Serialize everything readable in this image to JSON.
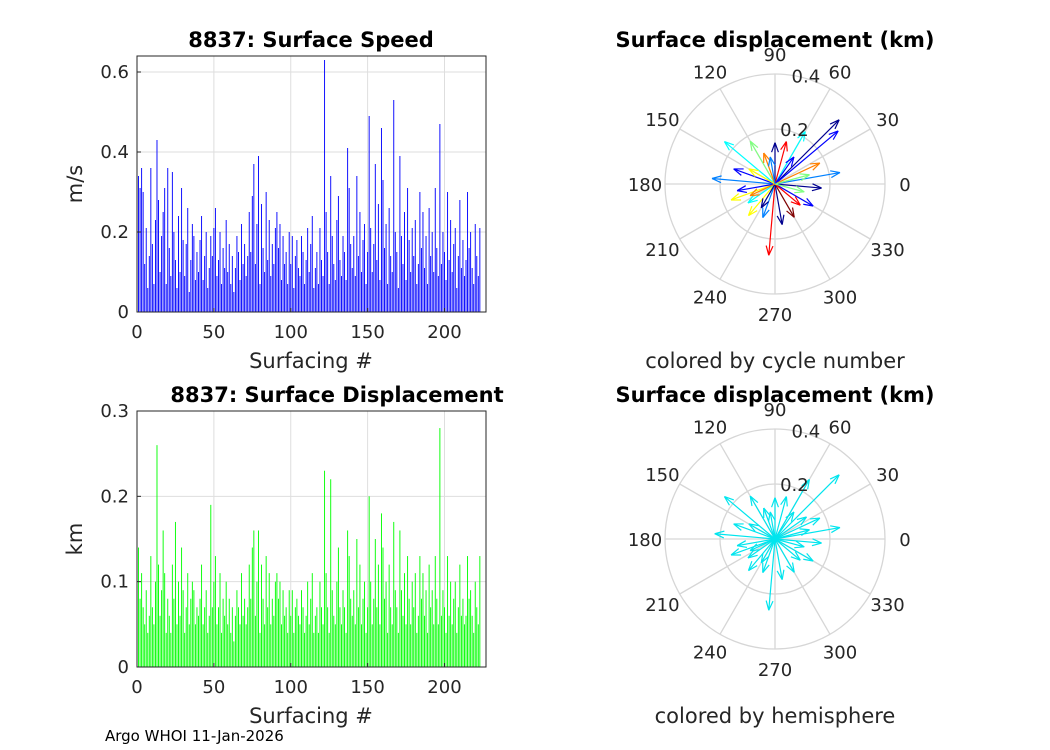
{
  "footer": "Argo WHOI 11-Jan-2026",
  "chart_data": [
    {
      "type": "bar",
      "title": "8837: Surface Speed",
      "xlabel": "Surfacing #",
      "ylabel": "m/s",
      "xlim": [
        0,
        227
      ],
      "ylim": [
        0,
        0.64
      ],
      "xticks": [
        0,
        50,
        100,
        150,
        200
      ],
      "xtick_labels": [
        "0",
        "50",
        "100",
        "150",
        "200"
      ],
      "yticks": [
        0,
        0.2,
        0.4,
        0.6
      ],
      "ytick_labels": [
        "0",
        "0.2",
        "0.4",
        "0.6"
      ],
      "color": "#0000ff",
      "values": [
        0.34,
        0.31,
        0.36,
        0.3,
        0.12,
        0.21,
        0.06,
        0.14,
        0.36,
        0.17,
        0.07,
        0.23,
        0.43,
        0.28,
        0.1,
        0.19,
        0.25,
        0.31,
        0.07,
        0.36,
        0.16,
        0.09,
        0.35,
        0.2,
        0.13,
        0.06,
        0.24,
        0.1,
        0.31,
        0.18,
        0.09,
        0.17,
        0.26,
        0.05,
        0.13,
        0.22,
        0.19,
        0.08,
        0.15,
        0.1,
        0.18,
        0.24,
        0.08,
        0.14,
        0.2,
        0.06,
        0.11,
        0.19,
        0.14,
        0.21,
        0.26,
        0.09,
        0.13,
        0.2,
        0.07,
        0.16,
        0.11,
        0.23,
        0.1,
        0.17,
        0.07,
        0.14,
        0.05,
        0.11,
        0.19,
        0.15,
        0.08,
        0.22,
        0.12,
        0.17,
        0.09,
        0.14,
        0.25,
        0.15,
        0.29,
        0.37,
        0.12,
        0.22,
        0.39,
        0.07,
        0.27,
        0.16,
        0.1,
        0.3,
        0.13,
        0.23,
        0.09,
        0.17,
        0.12,
        0.21,
        0.25,
        0.16,
        0.22,
        0.08,
        0.19,
        0.12,
        0.15,
        0.07,
        0.2,
        0.12,
        0.19,
        0.06,
        0.14,
        0.18,
        0.11,
        0.09,
        0.19,
        0.15,
        0.07,
        0.13,
        0.21,
        0.1,
        0.17,
        0.24,
        0.06,
        0.11,
        0.15,
        0.07,
        0.21,
        0.13,
        0.09,
        0.63,
        0.25,
        0.15,
        0.07,
        0.34,
        0.19,
        0.12,
        0.08,
        0.23,
        0.29,
        0.13,
        0.09,
        0.19,
        0.15,
        0.08,
        0.41,
        0.31,
        0.17,
        0.11,
        0.19,
        0.09,
        0.34,
        0.14,
        0.25,
        0.1,
        0.18,
        0.22,
        0.07,
        0.15,
        0.49,
        0.21,
        0.1,
        0.17,
        0.37,
        0.13,
        0.27,
        0.08,
        0.46,
        0.33,
        0.16,
        0.22,
        0.07,
        0.26,
        0.14,
        0.1,
        0.53,
        0.2,
        0.15,
        0.06,
        0.39,
        0.19,
        0.12,
        0.25,
        0.08,
        0.31,
        0.18,
        0.1,
        0.21,
        0.14,
        0.23,
        0.07,
        0.12,
        0.3,
        0.16,
        0.25,
        0.11,
        0.19,
        0.07,
        0.26,
        0.14,
        0.2,
        0.1,
        0.31,
        0.16,
        0.09,
        0.47,
        0.12,
        0.2,
        0.15,
        0.08,
        0.3,
        0.13,
        0.23,
        0.1,
        0.17,
        0.21,
        0.06,
        0.14,
        0.28,
        0.11,
        0.18,
        0.09,
        0.13,
        0.3,
        0.16,
        0.2,
        0.11,
        0.07,
        0.22,
        0.14,
        0.09,
        0.21
      ]
    },
    {
      "type": "bar",
      "title": "8837: Surface Displacement",
      "xlabel": "Surfacing #",
      "ylabel": "km",
      "xlim": [
        0,
        227
      ],
      "ylim": [
        0,
        0.3
      ],
      "xticks": [
        0,
        50,
        100,
        150,
        200
      ],
      "xtick_labels": [
        "0",
        "50",
        "100",
        "150",
        "200"
      ],
      "yticks": [
        0,
        0.1,
        0.2,
        0.3
      ],
      "ytick_labels": [
        "0",
        "0.1",
        "0.2",
        "0.3"
      ],
      "color": "#00ff00",
      "values": [
        0.14,
        0.08,
        0.11,
        0.07,
        0.05,
        0.09,
        0.04,
        0.06,
        0.13,
        0.07,
        0.05,
        0.1,
        0.26,
        0.12,
        0.06,
        0.09,
        0.16,
        0.11,
        0.04,
        0.08,
        0.06,
        0.04,
        0.12,
        0.08,
        0.17,
        0.05,
        0.1,
        0.06,
        0.14,
        0.09,
        0.04,
        0.07,
        0.11,
        0.05,
        0.08,
        0.1,
        0.09,
        0.05,
        0.07,
        0.06,
        0.08,
        0.12,
        0.05,
        0.07,
        0.09,
        0.04,
        0.06,
        0.19,
        0.07,
        0.1,
        0.13,
        0.05,
        0.07,
        0.11,
        0.04,
        0.08,
        0.06,
        0.1,
        0.05,
        0.08,
        0.04,
        0.07,
        0.03,
        0.06,
        0.09,
        0.07,
        0.05,
        0.11,
        0.06,
        0.08,
        0.05,
        0.07,
        0.12,
        0.08,
        0.14,
        0.16,
        0.06,
        0.1,
        0.16,
        0.04,
        0.12,
        0.08,
        0.05,
        0.13,
        0.07,
        0.11,
        0.05,
        0.08,
        0.06,
        0.1,
        0.11,
        0.08,
        0.1,
        0.05,
        0.09,
        0.06,
        0.07,
        0.04,
        0.09,
        0.06,
        0.09,
        0.04,
        0.07,
        0.08,
        0.06,
        0.05,
        0.09,
        0.07,
        0.04,
        0.06,
        0.1,
        0.05,
        0.08,
        0.11,
        0.04,
        0.06,
        0.07,
        0.04,
        0.1,
        0.07,
        0.05,
        0.23,
        0.11,
        0.07,
        0.04,
        0.22,
        0.09,
        0.06,
        0.05,
        0.1,
        0.14,
        0.07,
        0.05,
        0.09,
        0.07,
        0.04,
        0.16,
        0.13,
        0.08,
        0.06,
        0.09,
        0.05,
        0.15,
        0.07,
        0.12,
        0.05,
        0.08,
        0.1,
        0.04,
        0.07,
        0.2,
        0.1,
        0.05,
        0.08,
        0.15,
        0.07,
        0.12,
        0.05,
        0.18,
        0.14,
        0.08,
        0.1,
        0.04,
        0.12,
        0.07,
        0.05,
        0.17,
        0.09,
        0.07,
        0.04,
        0.16,
        0.09,
        0.06,
        0.11,
        0.05,
        0.13,
        0.08,
        0.05,
        0.1,
        0.07,
        0.11,
        0.04,
        0.06,
        0.13,
        0.08,
        0.11,
        0.06,
        0.09,
        0.04,
        0.12,
        0.07,
        0.09,
        0.05,
        0.13,
        0.08,
        0.05,
        0.28,
        0.06,
        0.09,
        0.07,
        0.04,
        0.13,
        0.06,
        0.1,
        0.05,
        0.08,
        0.1,
        0.04,
        0.07,
        0.12,
        0.06,
        0.08,
        0.05,
        0.06,
        0.13,
        0.08,
        0.09,
        0.06,
        0.04,
        0.1,
        0.07,
        0.05,
        0.13
      ]
    },
    {
      "type": "polar-compass",
      "title": "Surface displacement (km)",
      "caption": "colored by cycle number",
      "rmax": 0.4,
      "rtick_labels": [
        "0.2",
        "0.4"
      ],
      "angle_labels": [
        "0",
        "30",
        "60",
        "90",
        "120",
        "150",
        "180",
        "210",
        "240",
        "270",
        "300",
        "330"
      ],
      "colormap": [
        "#00008f",
        "#0000ff",
        "#0080ff",
        "#00ffff",
        "#80ff80",
        "#ffff00",
        "#ff8000",
        "#ff0000",
        "#800000"
      ],
      "arrows": [
        [
          45,
          0.33,
          0
        ],
        [
          40,
          0.3,
          1
        ],
        [
          265,
          0.26,
          7
        ],
        [
          60,
          0.22,
          3
        ],
        [
          140,
          0.24,
          3
        ],
        [
          175,
          0.23,
          2
        ],
        [
          10,
          0.24,
          2
        ],
        [
          25,
          0.18,
          6
        ],
        [
          200,
          0.17,
          5
        ],
        [
          330,
          0.16,
          1
        ],
        [
          90,
          0.15,
          0
        ],
        [
          120,
          0.18,
          4
        ],
        [
          300,
          0.14,
          8
        ],
        [
          230,
          0.15,
          5
        ],
        [
          160,
          0.16,
          1
        ],
        [
          355,
          0.17,
          0
        ],
        [
          75,
          0.16,
          7
        ],
        [
          250,
          0.13,
          2
        ],
        [
          190,
          0.14,
          1
        ],
        [
          15,
          0.13,
          4
        ],
        [
          110,
          0.12,
          6
        ],
        [
          280,
          0.15,
          0
        ],
        [
          215,
          0.12,
          3
        ],
        [
          320,
          0.12,
          7
        ],
        [
          150,
          0.11,
          5
        ],
        [
          55,
          0.12,
          1
        ],
        [
          100,
          0.1,
          2
        ],
        [
          240,
          0.1,
          0
        ],
        [
          345,
          0.11,
          4
        ],
        [
          205,
          0.1,
          6
        ]
      ]
    },
    {
      "type": "polar-compass",
      "title": "Surface displacement (km)",
      "caption": "colored by hemisphere",
      "rmax": 0.4,
      "rtick_labels": [
        "0.2",
        "0.4"
      ],
      "angle_labels": [
        "0",
        "30",
        "60",
        "90",
        "120",
        "150",
        "180",
        "210",
        "240",
        "270",
        "300",
        "330"
      ],
      "color": "#00e5ee",
      "arrows": [
        [
          45,
          0.33
        ],
        [
          60,
          0.25
        ],
        [
          265,
          0.26
        ],
        [
          140,
          0.24
        ],
        [
          175,
          0.22
        ],
        [
          10,
          0.24
        ],
        [
          25,
          0.18
        ],
        [
          200,
          0.17
        ],
        [
          330,
          0.16
        ],
        [
          90,
          0.15
        ],
        [
          120,
          0.18
        ],
        [
          300,
          0.14
        ],
        [
          230,
          0.15
        ],
        [
          160,
          0.16
        ],
        [
          355,
          0.17
        ],
        [
          75,
          0.16
        ],
        [
          250,
          0.13
        ],
        [
          190,
          0.14
        ],
        [
          15,
          0.13
        ],
        [
          110,
          0.12
        ],
        [
          280,
          0.15
        ],
        [
          215,
          0.12
        ],
        [
          320,
          0.12
        ],
        [
          150,
          0.11
        ],
        [
          55,
          0.12
        ],
        [
          100,
          0.1
        ],
        [
          240,
          0.1
        ],
        [
          345,
          0.11
        ],
        [
          205,
          0.1
        ],
        [
          35,
          0.14
        ]
      ]
    }
  ]
}
